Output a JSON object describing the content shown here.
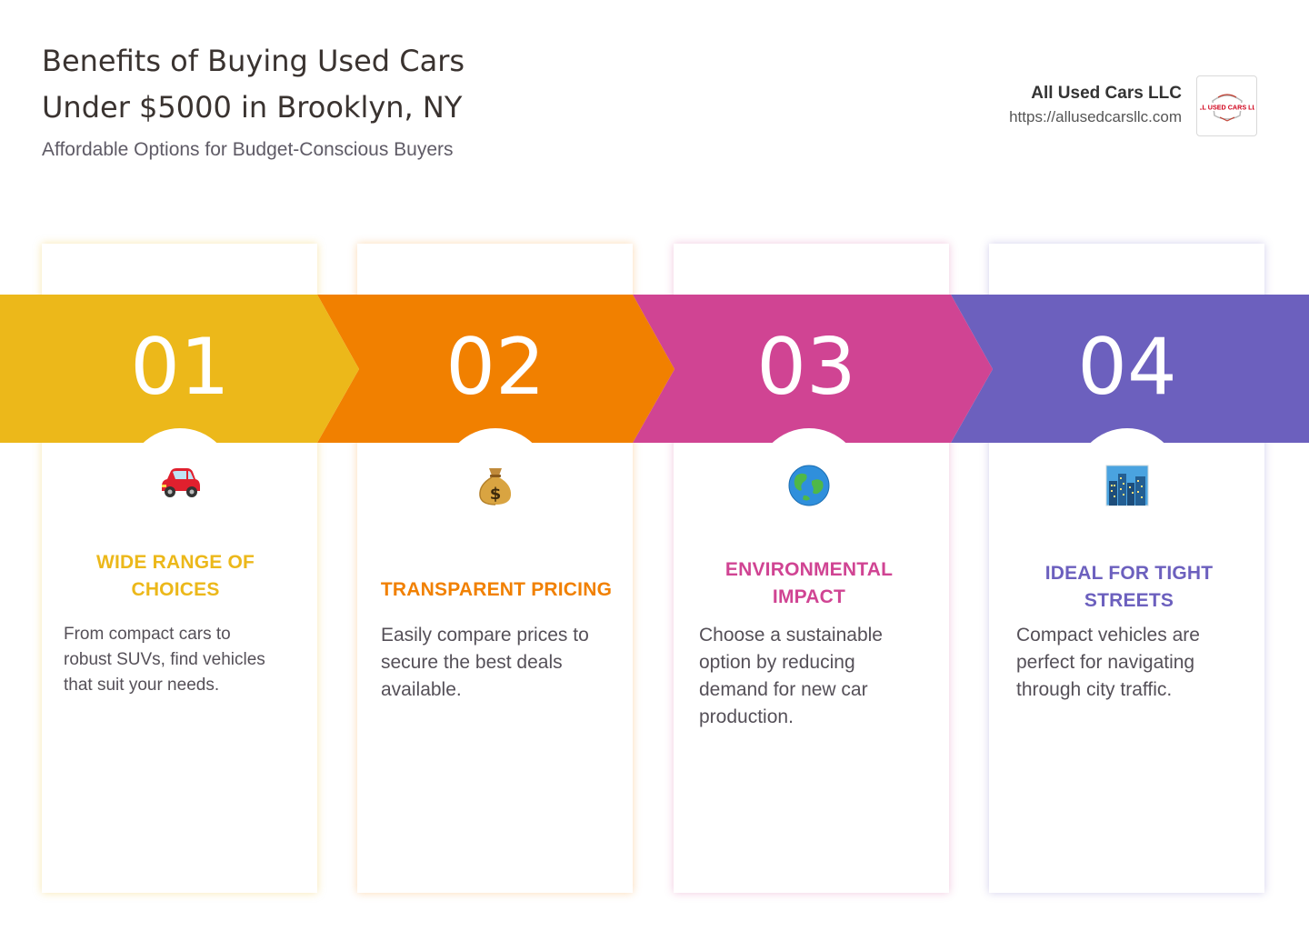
{
  "header": {
    "title_line1": "Benefits of Buying Used Cars",
    "title_line2": "Under $5000 in Brooklyn, NY",
    "subtitle": "Affordable Options for Budget-Conscious Buyers"
  },
  "brand": {
    "name": "All Used Cars LLC",
    "url": "https://allusedcarsllc.com",
    "logo_text": "ALL USED CARS LLC"
  },
  "colors": {
    "yellow": "#ECB81A",
    "orange": "#F18000",
    "magenta": "#D04493",
    "purple": "#6C60BE"
  },
  "cards": [
    {
      "number": "01",
      "icon": "car-icon",
      "title_line1": "WIDE RANGE OF",
      "title_line2": "CHOICES",
      "text_lines": [
        "From compact cars to",
        "robust SUVs, find vehicles",
        "that suit your needs."
      ]
    },
    {
      "number": "02",
      "icon": "money-bag-icon",
      "title_line1": "TRANSPARENT PRICING",
      "title_line2": "",
      "text_lines": [
        "Easily compare prices to",
        "secure the best deals",
        "available."
      ]
    },
    {
      "number": "03",
      "icon": "globe-icon",
      "title_line1": "ENVIRONMENTAL",
      "title_line2": "IMPACT",
      "text_lines": [
        "Choose a sustainable",
        "option by reducing",
        "demand for new car",
        "production."
      ]
    },
    {
      "number": "04",
      "icon": "cityscape-icon",
      "title_line1": "IDEAL FOR TIGHT",
      "title_line2": "STREETS",
      "text_lines": [
        "Compact vehicles are",
        "perfect for navigating",
        "through city traffic."
      ]
    }
  ]
}
